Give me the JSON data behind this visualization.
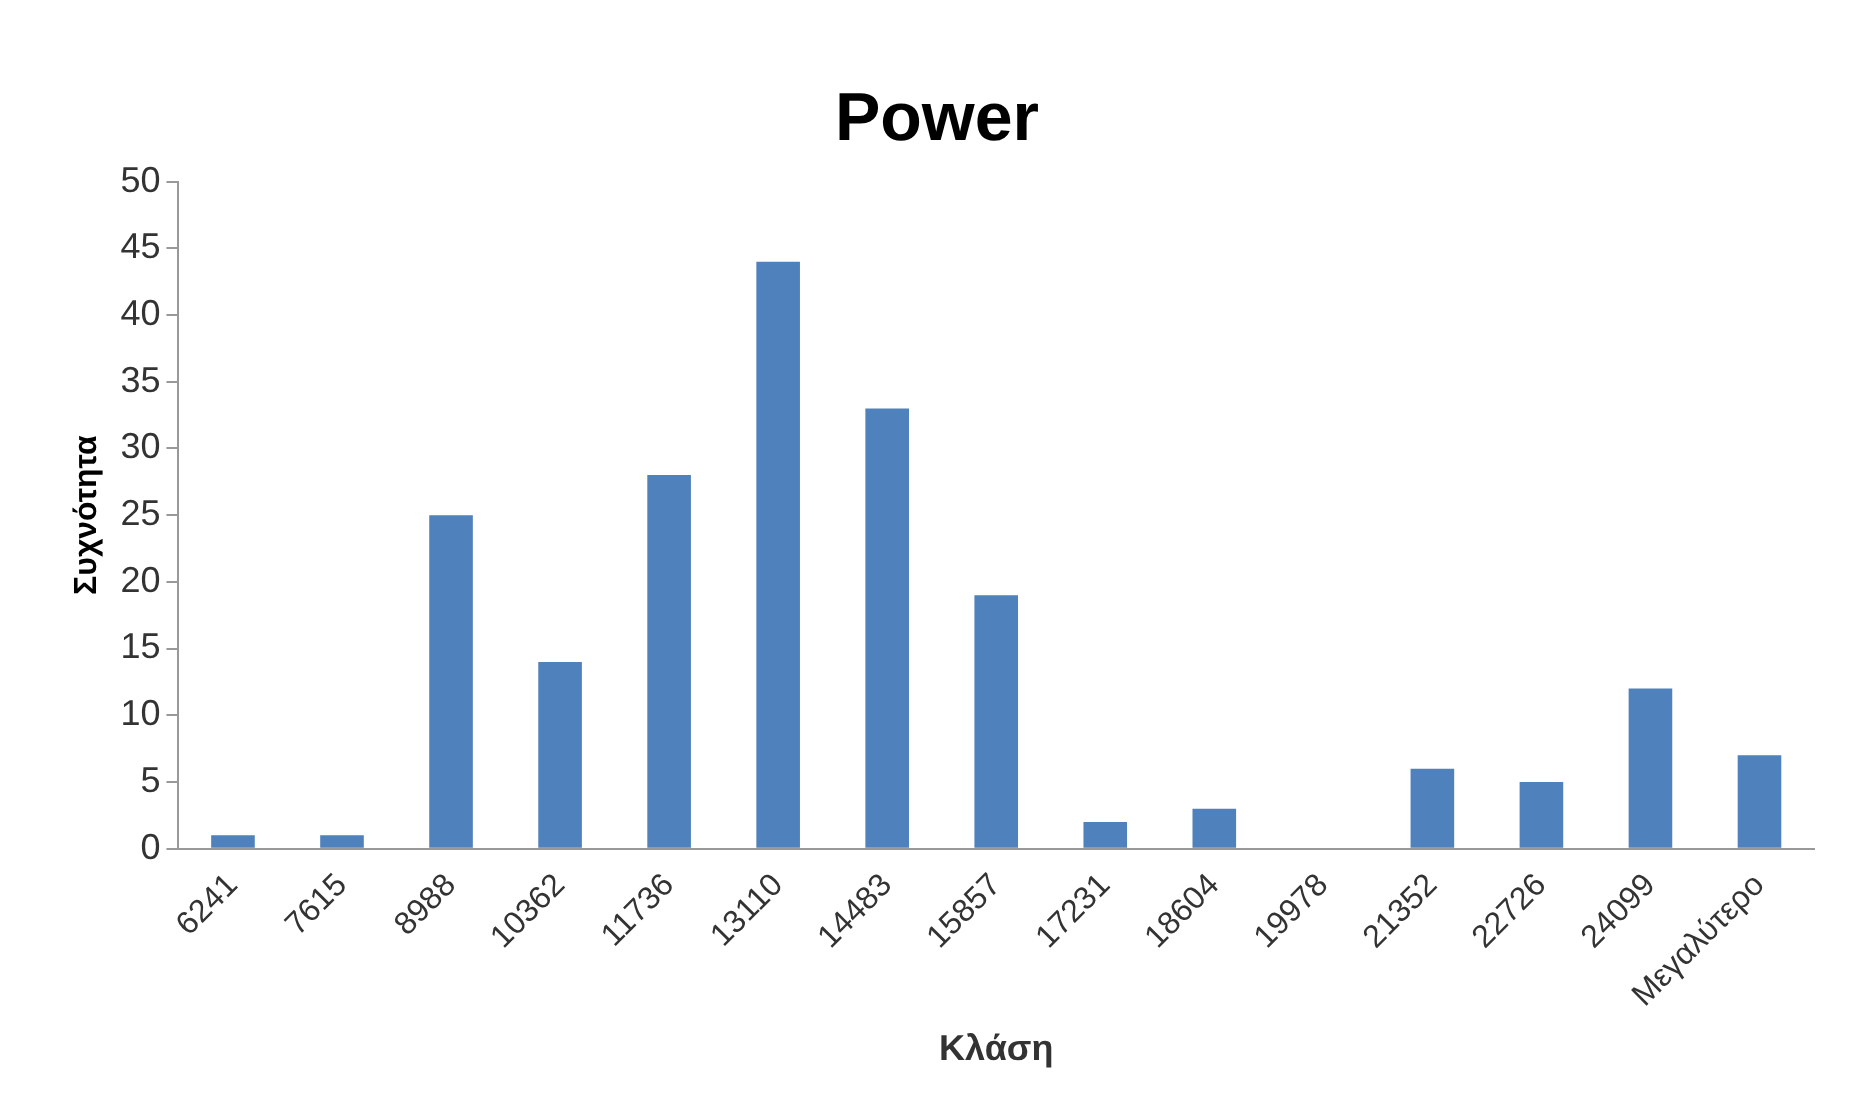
{
  "chart_data": {
    "type": "bar",
    "title": "Power",
    "xlabel": "Κλάση",
    "ylabel": "Συχνότητα",
    "categories": [
      "6241",
      "7615",
      "8988",
      "10362",
      "11736",
      "13110",
      "14483",
      "15857",
      "17231",
      "18604",
      "19978",
      "21352",
      "22726",
      "24099",
      "Μεγαλύτερο"
    ],
    "values": [
      1,
      1,
      25,
      14,
      28,
      44,
      33,
      19,
      2,
      3,
      0,
      6,
      5,
      12,
      7
    ],
    "color": "#4f81bd",
    "ylim": [
      0,
      50
    ],
    "yticks": [
      0,
      5,
      10,
      15,
      20,
      25,
      30,
      35,
      40,
      45,
      50
    ],
    "grid": false,
    "legend": false
  }
}
